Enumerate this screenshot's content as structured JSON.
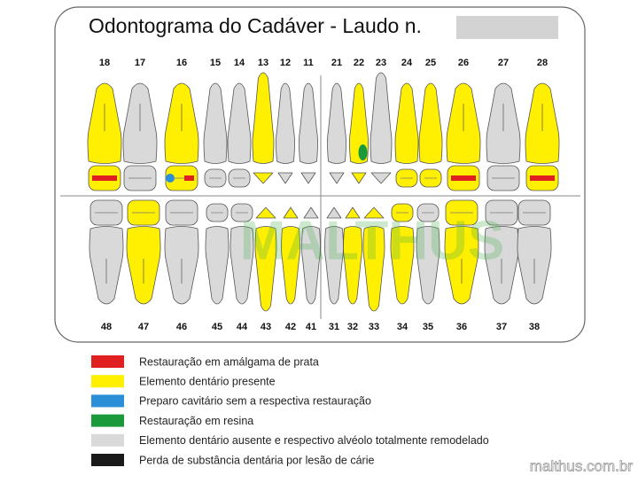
{
  "title": "Odontograma do Cadáver  -  Laudo n.",
  "watermark": "MALTHUS",
  "footer": "malthus.com.br",
  "upper_teeth": [
    {
      "number": 18,
      "color": "#ffef00",
      "marks": [
        "#e02020"
      ]
    },
    {
      "number": 17,
      "color": "#d9d9d9"
    },
    {
      "number": 16,
      "color": "#ffef00",
      "marks": [
        "#2b8fd8",
        "#e02020"
      ]
    },
    {
      "number": 15,
      "color": "#d9d9d9"
    },
    {
      "number": 14,
      "color": "#d9d9d9"
    },
    {
      "number": 13,
      "color": "#ffef00"
    },
    {
      "number": 12,
      "color": "#d9d9d9"
    },
    {
      "number": 11,
      "color": "#d9d9d9"
    },
    {
      "number": 21,
      "color": "#d9d9d9"
    },
    {
      "number": 22,
      "color": "#ffef00",
      "crown_mark": "#1a9a3a"
    },
    {
      "number": 23,
      "color": "#d9d9d9"
    },
    {
      "number": 24,
      "color": "#ffef00"
    },
    {
      "number": 25,
      "color": "#ffef00"
    },
    {
      "number": 26,
      "color": "#ffef00",
      "marks": [
        "#e02020"
      ]
    },
    {
      "number": 27,
      "color": "#d9d9d9"
    },
    {
      "number": 28,
      "color": "#ffef00",
      "marks": [
        "#e02020"
      ]
    }
  ],
  "lower_teeth": [
    {
      "number": 48,
      "color": "#d9d9d9"
    },
    {
      "number": 47,
      "color": "#ffef00"
    },
    {
      "number": 46,
      "color": "#d9d9d9"
    },
    {
      "number": 45,
      "color": "#d9d9d9"
    },
    {
      "number": 44,
      "color": "#d9d9d9"
    },
    {
      "number": 43,
      "color": "#ffef00"
    },
    {
      "number": 42,
      "color": "#ffef00"
    },
    {
      "number": 41,
      "color": "#d9d9d9"
    },
    {
      "number": 31,
      "color": "#d9d9d9"
    },
    {
      "number": 32,
      "color": "#ffef00"
    },
    {
      "number": 33,
      "color": "#ffef00"
    },
    {
      "number": 34,
      "color": "#ffef00"
    },
    {
      "number": 35,
      "color": "#d9d9d9"
    },
    {
      "number": 36,
      "color": "#ffef00"
    },
    {
      "number": 37,
      "color": "#d9d9d9"
    },
    {
      "number": 38,
      "color": "#d9d9d9"
    }
  ],
  "legend": [
    {
      "color": "#e02020",
      "label": "Restauração em amálgama de prata"
    },
    {
      "color": "#ffef00",
      "label": "Elemento dentário presente"
    },
    {
      "color": "#2b8fd8",
      "label": "Preparo cavitário sem a respectiva restauração"
    },
    {
      "color": "#1a9a3a",
      "label": "Restauração em resina"
    },
    {
      "color": "#d9d9d9",
      "label": "Elemento dentário ausente e respectivo alvéolo totalmente remodelado"
    },
    {
      "color": "#1a1a1a",
      "label": "Perda de substância dentária por lesão de cárie"
    }
  ]
}
